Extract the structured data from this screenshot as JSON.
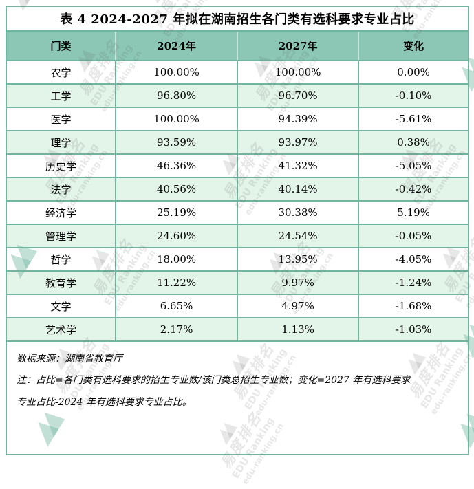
{
  "chart_data": {
    "type": "table",
    "title": "表 4  2024-2027 年拟在湖南招生各门类有选科要求专业占比",
    "columns": [
      "门类",
      "2024年",
      "2027年",
      "变化"
    ],
    "rows": [
      [
        "农学",
        "100.00%",
        "100.00%",
        "0.00%"
      ],
      [
        "工学",
        "96.80%",
        "96.70%",
        "-0.10%"
      ],
      [
        "医学",
        "100.00%",
        "94.39%",
        "-5.61%"
      ],
      [
        "理学",
        "93.59%",
        "93.97%",
        "0.38%"
      ],
      [
        "历史学",
        "46.36%",
        "41.32%",
        "-5.05%"
      ],
      [
        "法学",
        "40.56%",
        "40.14%",
        "-0.42%"
      ],
      [
        "经济学",
        "25.19%",
        "30.38%",
        "5.19%"
      ],
      [
        "管理学",
        "24.60%",
        "24.54%",
        "-0.05%"
      ],
      [
        "哲学",
        "18.00%",
        "13.95%",
        "-4.05%"
      ],
      [
        "教育学",
        "11.22%",
        "9.97%",
        "-1.24%"
      ],
      [
        "文学",
        "6.65%",
        "4.97%",
        "-1.68%"
      ],
      [
        "艺术学",
        "2.17%",
        "1.13%",
        "-1.03%"
      ]
    ]
  },
  "footer": {
    "source": "数据来源：湖南省教育厅",
    "note_lines": [
      "注：占比=各门类有选科要求的招生专业数/该门类总招生专业数；变化=2027 年有选科要求",
      "专业占比-2024 年有选科要求专业占比。"
    ]
  },
  "watermark": {
    "brand_cn": "易度排名",
    "brand_en": "EDU Ranking",
    "brand_url": "edu-ranking.cn",
    "chevron_glyph": "▲▲"
  },
  "colors": {
    "border": "#6FB5A0",
    "header_bg": "#8BC7B4",
    "row_alt_bg": "#E3F5E9",
    "text": "#000000"
  }
}
